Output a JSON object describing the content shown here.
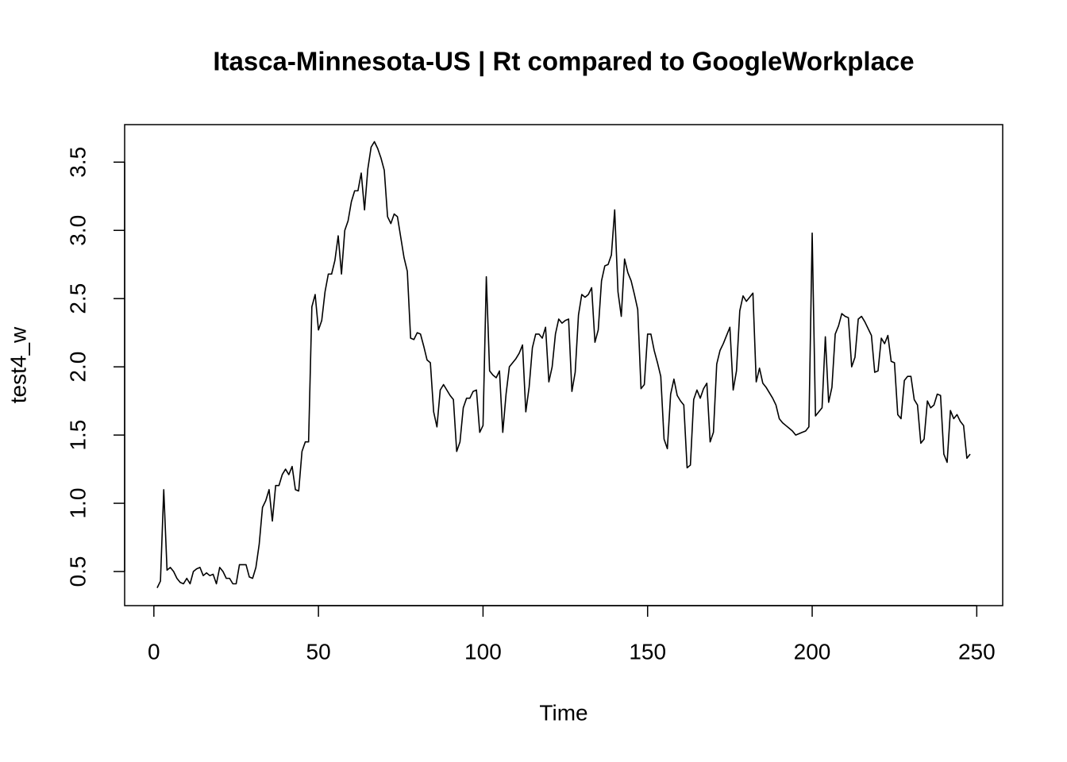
{
  "chart_data": {
    "type": "line",
    "title": "Itasca-Minnesota-US | Rt compared to GoogleWorkplace",
    "xlabel": "Time",
    "ylabel": "test4_w",
    "x": [
      1,
      2,
      3,
      4,
      5,
      6,
      7,
      8,
      9,
      10,
      11,
      12,
      13,
      14,
      15,
      16,
      17,
      18,
      19,
      20,
      21,
      22,
      23,
      24,
      25,
      26,
      27,
      28,
      29,
      30,
      31,
      32,
      33,
      34,
      35,
      36,
      37,
      38,
      39,
      40,
      41,
      42,
      43,
      44,
      45,
      46,
      47,
      48,
      49,
      50,
      51,
      52,
      53,
      54,
      55,
      56,
      57,
      58,
      59,
      60,
      61,
      62,
      63,
      64,
      65,
      66,
      67,
      68,
      69,
      70,
      71,
      72,
      73,
      74,
      75,
      76,
      77,
      78,
      79,
      80,
      81,
      82,
      83,
      84,
      85,
      86,
      87,
      88,
      89,
      90,
      91,
      92,
      93,
      94,
      95,
      96,
      97,
      98,
      99,
      100,
      101,
      102,
      103,
      104,
      105,
      106,
      107,
      108,
      109,
      110,
      111,
      112,
      113,
      114,
      115,
      116,
      117,
      118,
      119,
      120,
      121,
      122,
      123,
      124,
      125,
      126,
      127,
      128,
      129,
      130,
      131,
      132,
      133,
      134,
      135,
      136,
      137,
      138,
      139,
      140,
      141,
      142,
      143,
      144,
      145,
      146,
      147,
      148,
      149,
      150,
      151,
      152,
      153,
      154,
      155,
      156,
      157,
      158,
      159,
      160,
      161,
      162,
      163,
      164,
      165,
      166,
      167,
      168,
      169,
      170,
      171,
      172,
      173,
      174,
      175,
      176,
      177,
      178,
      179,
      180,
      181,
      182,
      183,
      184,
      185,
      186,
      187,
      188,
      189,
      190,
      191,
      192,
      193,
      194,
      195,
      196,
      197,
      198,
      199,
      200,
      201,
      202,
      203,
      204,
      205,
      206,
      207,
      208,
      209,
      210,
      211,
      212,
      213,
      214,
      215,
      216,
      217,
      218,
      219,
      220,
      221,
      222,
      223,
      224,
      225,
      226,
      227,
      228,
      229,
      230,
      231,
      232,
      233,
      234,
      235,
      236,
      237,
      238,
      239,
      240,
      241,
      242,
      243,
      244,
      245,
      246,
      247,
      248
    ],
    "series": [
      {
        "name": "test4_w",
        "color": "#000000",
        "values": [
          0.38,
          0.43,
          1.1,
          0.51,
          0.53,
          0.5,
          0.45,
          0.42,
          0.41,
          0.45,
          0.41,
          0.5,
          0.52,
          0.53,
          0.47,
          0.49,
          0.47,
          0.48,
          0.41,
          0.53,
          0.5,
          0.45,
          0.45,
          0.41,
          0.41,
          0.55,
          0.55,
          0.55,
          0.46,
          0.45,
          0.53,
          0.7,
          0.97,
          1.02,
          1.1,
          0.87,
          1.13,
          1.13,
          1.21,
          1.25,
          1.21,
          1.27,
          1.1,
          1.09,
          1.38,
          1.45,
          1.45,
          2.44,
          2.53,
          2.27,
          2.34,
          2.55,
          2.68,
          2.68,
          2.78,
          2.96,
          2.68,
          3.0,
          3.07,
          3.21,
          3.29,
          3.29,
          3.42,
          3.15,
          3.45,
          3.61,
          3.65,
          3.6,
          3.53,
          3.44,
          3.1,
          3.05,
          3.12,
          3.1,
          2.95,
          2.8,
          2.7,
          2.21,
          2.2,
          2.25,
          2.24,
          2.15,
          2.05,
          2.03,
          1.67,
          1.56,
          1.83,
          1.87,
          1.83,
          1.79,
          1.76,
          1.38,
          1.45,
          1.7,
          1.77,
          1.77,
          1.82,
          1.83,
          1.52,
          1.57,
          2.66,
          1.97,
          1.94,
          1.92,
          1.97,
          1.52,
          1.8,
          2.0,
          2.03,
          2.06,
          2.1,
          2.16,
          1.67,
          1.85,
          2.14,
          2.24,
          2.24,
          2.21,
          2.29,
          1.89,
          2.0,
          2.24,
          2.35,
          2.32,
          2.34,
          2.35,
          1.82,
          1.96,
          2.38,
          2.53,
          2.51,
          2.53,
          2.58,
          2.18,
          2.27,
          2.63,
          2.74,
          2.75,
          2.82,
          3.15,
          2.55,
          2.37,
          2.79,
          2.69,
          2.63,
          2.53,
          2.42,
          1.84,
          1.87,
          2.24,
          2.24,
          2.12,
          2.03,
          1.93,
          1.47,
          1.4,
          1.8,
          1.91,
          1.79,
          1.75,
          1.72,
          1.26,
          1.28,
          1.76,
          1.83,
          1.77,
          1.84,
          1.88,
          1.45,
          1.52,
          2.02,
          2.12,
          2.17,
          2.23,
          2.29,
          1.83,
          1.97,
          2.41,
          2.52,
          2.48,
          2.51,
          2.54,
          1.89,
          1.99,
          1.88,
          1.85,
          1.81,
          1.77,
          1.72,
          1.62,
          1.59,
          1.57,
          1.55,
          1.53,
          1.5,
          1.51,
          1.52,
          1.53,
          1.56,
          2.98,
          1.64,
          1.67,
          1.7,
          2.22,
          1.74,
          1.85,
          2.24,
          2.3,
          2.39,
          2.37,
          2.36,
          2.0,
          2.07,
          2.35,
          2.37,
          2.33,
          2.28,
          2.23,
          1.96,
          1.97,
          2.21,
          2.17,
          2.23,
          2.04,
          2.03,
          1.65,
          1.62,
          1.9,
          1.93,
          1.93,
          1.76,
          1.72,
          1.44,
          1.47,
          1.75,
          1.7,
          1.72,
          1.8,
          1.79,
          1.36,
          1.3,
          1.68,
          1.62,
          1.65,
          1.6,
          1.57,
          1.33,
          1.36
        ]
      }
    ],
    "xlim": [
      -8.88,
      257.88
    ],
    "xticks": [
      0,
      50,
      100,
      150,
      200,
      250
    ],
    "ylim": [
      0.25,
      3.775
    ],
    "yticks": [
      0.5,
      {
        "value": 1.0,
        "label": "1.0"
      },
      1.5,
      {
        "value": 2.0,
        "label": "2.0"
      },
      2.5,
      {
        "value": 3.0,
        "label": "3.0"
      },
      3.5
    ]
  }
}
